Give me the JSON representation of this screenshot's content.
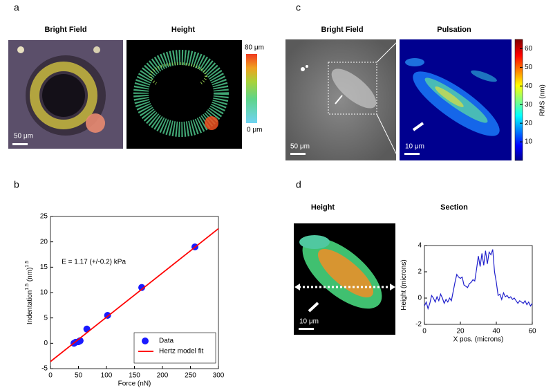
{
  "panel_labels": [
    "a",
    "b",
    "c",
    "d"
  ],
  "panel_a": {
    "left_title": "Bright Field",
    "right_title": "Height",
    "scale_bar": "50 μm",
    "colorbar_max": "80 μm",
    "colorbar_min": "0 μm"
  },
  "panel_c": {
    "left_title": "Bright Field",
    "right_title": "Pulsation",
    "scale_bar_left": "50 μm",
    "scale_bar_right": "10 μm",
    "colorbar_label": "RMS (nm)",
    "colorbar_lim": [
      0,
      65
    ],
    "colorbar_ticks": [
      10,
      20,
      30,
      40,
      50,
      60
    ]
  },
  "panel_d": {
    "left_title": "Height",
    "right_title": "Section",
    "scale_bar": "10 μm"
  },
  "chart_data": [
    {
      "type": "scatter",
      "annotation": "E = 1.17 (+/-0.2) kPa",
      "xlabel": "Force (nN)",
      "ylabel": [
        "Indentation",
        "1.5",
        " (nm)",
        "1.5"
      ],
      "xlim": [
        0,
        300
      ],
      "xticks": [
        0,
        50,
        100,
        150,
        200,
        250,
        300
      ],
      "ylim": [
        -5,
        25
      ],
      "yticks": [
        -5,
        0,
        5,
        10,
        15,
        20,
        25
      ],
      "legend": "lower right",
      "series": [
        {
          "name": "Data",
          "color": "#1a1aff",
          "mode": "markers",
          "x": [
            42,
            45,
            50,
            53,
            65,
            102,
            163,
            258
          ],
          "values": [
            0,
            0.2,
            0.3,
            0.5,
            2.8,
            5.5,
            11,
            19
          ]
        },
        {
          "name": "Hertz model fit",
          "color": "#ff0000",
          "mode": "line",
          "x": [
            0,
            300
          ],
          "values": [
            -3.6,
            22.6
          ]
        }
      ]
    },
    {
      "type": "line",
      "xlabel": "X pos. (microns)",
      "ylabel": [
        "Height (microns)"
      ],
      "xlim": [
        0,
        60
      ],
      "xticks": [
        0,
        20,
        40,
        60
      ],
      "ylim": [
        -2,
        4
      ],
      "yticks": [
        -2,
        0,
        2,
        4
      ],
      "series": [
        {
          "color": "#1f1fcc",
          "mode": "line",
          "x": [
            0,
            1,
            2,
            3,
            4,
            5,
            6,
            7,
            8,
            9,
            10,
            11,
            12,
            13,
            14,
            15,
            16,
            17,
            18,
            19,
            20,
            21,
            22,
            23,
            24,
            25,
            26,
            27,
            28,
            29,
            30,
            31,
            32,
            33,
            34,
            35,
            36,
            37,
            38,
            39,
            40,
            41,
            42,
            43,
            44,
            45,
            46,
            47,
            48,
            49,
            50,
            51,
            52,
            53,
            54,
            55,
            56,
            57,
            58,
            59,
            60
          ],
          "values": [
            -0.6,
            -0.3,
            -0.8,
            -0.4,
            0.2,
            0.0,
            -0.3,
            0.1,
            -0.2,
            0.3,
            0.0,
            -0.4,
            -0.1,
            -0.3,
            0.0,
            -0.2,
            0.5,
            1.2,
            1.8,
            1.6,
            1.5,
            1.6,
            1.0,
            0.9,
            0.8,
            1.1,
            1.2,
            1.4,
            1.3,
            2.2,
            3.2,
            2.4,
            3.4,
            2.5,
            3.6,
            2.6,
            3.5,
            3.3,
            3.7,
            2.0,
            1.2,
            0.2,
            0.3,
            -0.1,
            0.4,
            0.1,
            0.2,
            0.0,
            0.1,
            -0.1,
            0.0,
            -0.2,
            -0.4,
            -0.2,
            -0.3,
            -0.4,
            -0.2,
            -0.5,
            -0.3,
            -0.6,
            -0.4
          ]
        }
      ]
    }
  ]
}
